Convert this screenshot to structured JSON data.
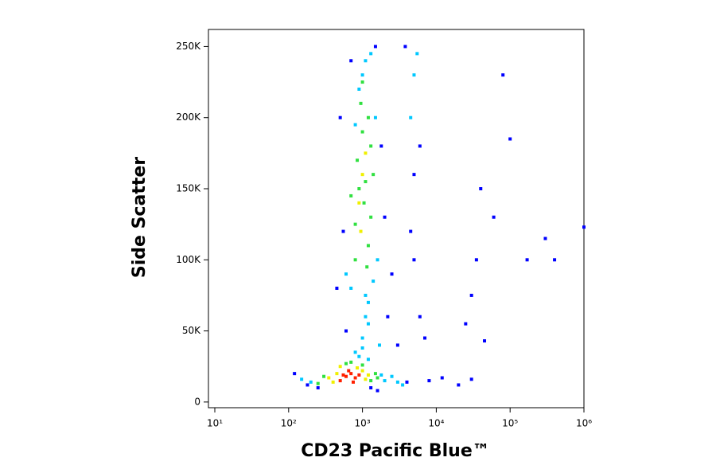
{
  "chart_data": {
    "type": "scatter",
    "xlabel": "CD23 Pacific Blue™",
    "ylabel": "Side Scatter",
    "xscale": "log",
    "xlim": [
      8.2,
      1000000
    ],
    "ylim": [
      -4000,
      262000
    ],
    "xticks": [
      {
        "value": 10,
        "label": "10¹"
      },
      {
        "value": 100,
        "label": "10²"
      },
      {
        "value": 1000,
        "label": "10³"
      },
      {
        "value": 10000,
        "label": "10⁴"
      },
      {
        "value": 100000,
        "label": "10⁵"
      },
      {
        "value": 1000000,
        "label": "10⁶"
      }
    ],
    "yticks": [
      0,
      {
        "value": 50000,
        "label": "50K"
      },
      {
        "value": 100000,
        "label": "100K"
      },
      {
        "value": 150000,
        "label": "150K"
      },
      {
        "value": 200000,
        "label": "200K"
      },
      {
        "value": 250000,
        "label": "250K"
      }
    ],
    "series": [
      {
        "color": "#0000ff",
        "x": [
          120,
          180,
          250,
          4000,
          8000,
          12000,
          20000,
          30000,
          6000,
          7000,
          5000,
          2500,
          3000,
          2000,
          1800,
          450,
          550,
          500,
          1500,
          2200,
          600,
          700,
          5000,
          6000,
          3800,
          4500,
          40000,
          35000,
          30000,
          60000,
          80000,
          300000,
          170000,
          100000,
          400000,
          45000,
          1000000,
          25000,
          1300,
          1600
        ],
        "values": [
          20000,
          12000,
          10000,
          14000,
          15000,
          17000,
          12000,
          16000,
          60000,
          45000,
          100000,
          90000,
          40000,
          130000,
          180000,
          80000,
          120000,
          200000,
          250000,
          60000,
          50000,
          240000,
          160000,
          180000,
          250000,
          120000,
          150000,
          100000,
          75000,
          130000,
          230000,
          115000,
          100000,
          185000,
          100000,
          43000,
          123000,
          55000,
          10000,
          8000
        ]
      },
      {
        "color": "#00c8ff",
        "x": [
          200,
          2000,
          3000,
          1800,
          800,
          1000,
          1100,
          1200,
          700,
          600,
          1400,
          1600,
          1100,
          1000,
          900,
          1300,
          1500,
          1200,
          4500,
          5000,
          5500,
          1000,
          1200,
          900,
          2500,
          150,
          3500,
          1700,
          800,
          1100
        ],
        "values": [
          14000,
          15000,
          14000,
          19000,
          35000,
          45000,
          60000,
          70000,
          80000,
          90000,
          85000,
          100000,
          240000,
          230000,
          220000,
          245000,
          200000,
          55000,
          200000,
          230000,
          245000,
          38000,
          30000,
          32000,
          18000,
          16000,
          12000,
          40000,
          195000,
          75000
        ]
      },
      {
        "color": "#30e040",
        "x": [
          300,
          1300,
          1500,
          700,
          600,
          1000,
          800,
          1200,
          1300,
          900,
          1100,
          1000,
          850,
          1400,
          1200,
          950,
          1050,
          800,
          1300,
          1150,
          1000,
          250,
          1600,
          700
        ],
        "values": [
          18000,
          15000,
          20000,
          28000,
          27000,
          26000,
          100000,
          110000,
          130000,
          150000,
          155000,
          190000,
          170000,
          160000,
          200000,
          210000,
          140000,
          125000,
          180000,
          95000,
          225000,
          13000,
          17000,
          145000
        ]
      },
      {
        "color": "#f0f000",
        "x": [
          400,
          450,
          1000,
          1100,
          500,
          850,
          350,
          1200,
          1000,
          900,
          1100,
          950
        ],
        "values": [
          14000,
          20000,
          22000,
          16000,
          25000,
          24000,
          17000,
          19000,
          160000,
          140000,
          175000,
          120000
        ]
      },
      {
        "color": "#ff2000",
        "x": [
          500,
          600,
          700,
          800,
          650,
          550,
          750,
          900
        ],
        "values": [
          15000,
          18000,
          20000,
          17000,
          22000,
          19000,
          14000,
          19000
        ]
      }
    ]
  }
}
